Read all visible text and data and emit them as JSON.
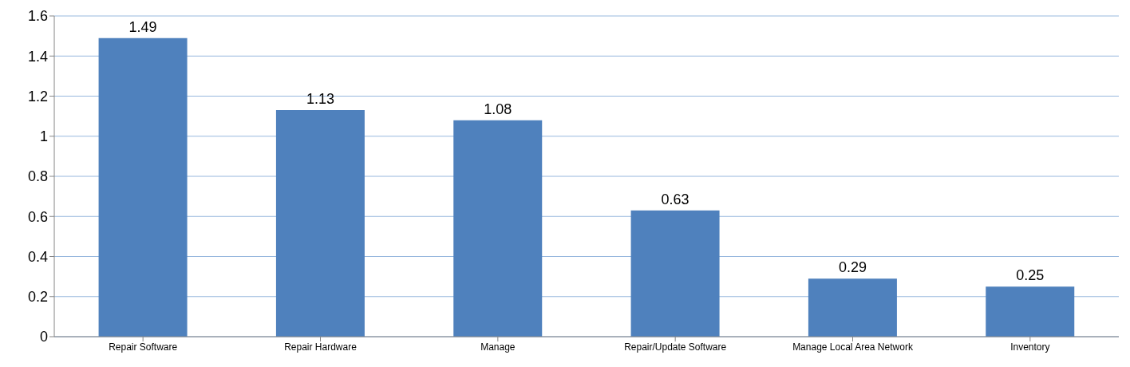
{
  "chart_data": {
    "type": "bar",
    "categories": [
      "Repair Software",
      "Repair Hardware",
      "Manage",
      "Repair/Update Software",
      "Manage Local Area Network",
      "Inventory"
    ],
    "values": [
      1.49,
      1.13,
      1.08,
      0.63,
      0.29,
      0.25
    ],
    "color": "#4f81bd",
    "ylim": [
      0,
      1.6
    ],
    "yticks": [
      0,
      0.2,
      0.4,
      0.6,
      0.8,
      1,
      1.2,
      1.4,
      1.6
    ],
    "grid": "y",
    "data_labels": true
  }
}
